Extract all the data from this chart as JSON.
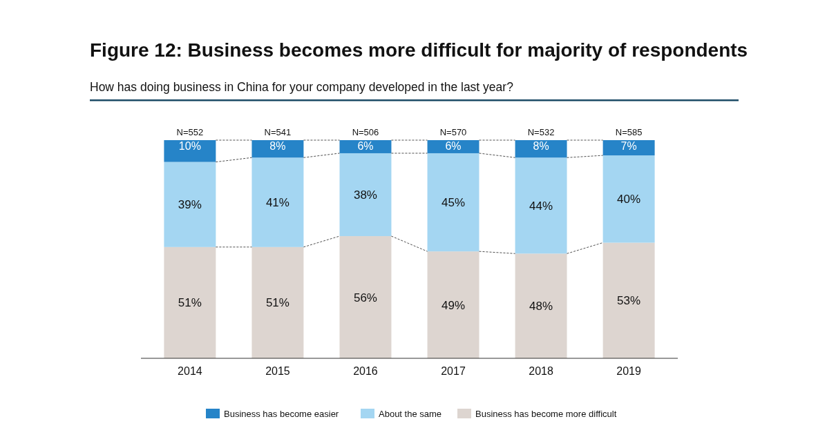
{
  "chart_data": {
    "type": "bar",
    "stacked": true,
    "title": "Figure 12: Business becomes more difficult for majority of respondents",
    "subtitle": "How has doing business in China for your company developed in the last year?",
    "categories": [
      "2014",
      "2015",
      "2016",
      "2017",
      "2018",
      "2019"
    ],
    "series": [
      {
        "name": "Business has become more difficult",
        "color": "#ddd5d0",
        "values": [
          51,
          51,
          56,
          49,
          48,
          53
        ],
        "value_labels": [
          "51%",
          "51%",
          "56%",
          "49%",
          "48%",
          "53%"
        ]
      },
      {
        "name": "About the same",
        "color": "#a4d6f2",
        "values": [
          39,
          41,
          38,
          45,
          44,
          40
        ],
        "value_labels": [
          "39%",
          "41%",
          "38%",
          "45%",
          "44%",
          "40%"
        ]
      },
      {
        "name": "Business has become easier",
        "color": "#2684c8",
        "values": [
          10,
          8,
          6,
          6,
          8,
          7
        ],
        "value_labels": [
          "10%",
          "8%",
          "6%",
          "6%",
          "8%",
          "7%"
        ]
      }
    ],
    "annotations": [
      "N=552",
      "N=541",
      "N=506",
      "N=570",
      "N=532",
      "N=585"
    ],
    "legend": "bottom"
  }
}
